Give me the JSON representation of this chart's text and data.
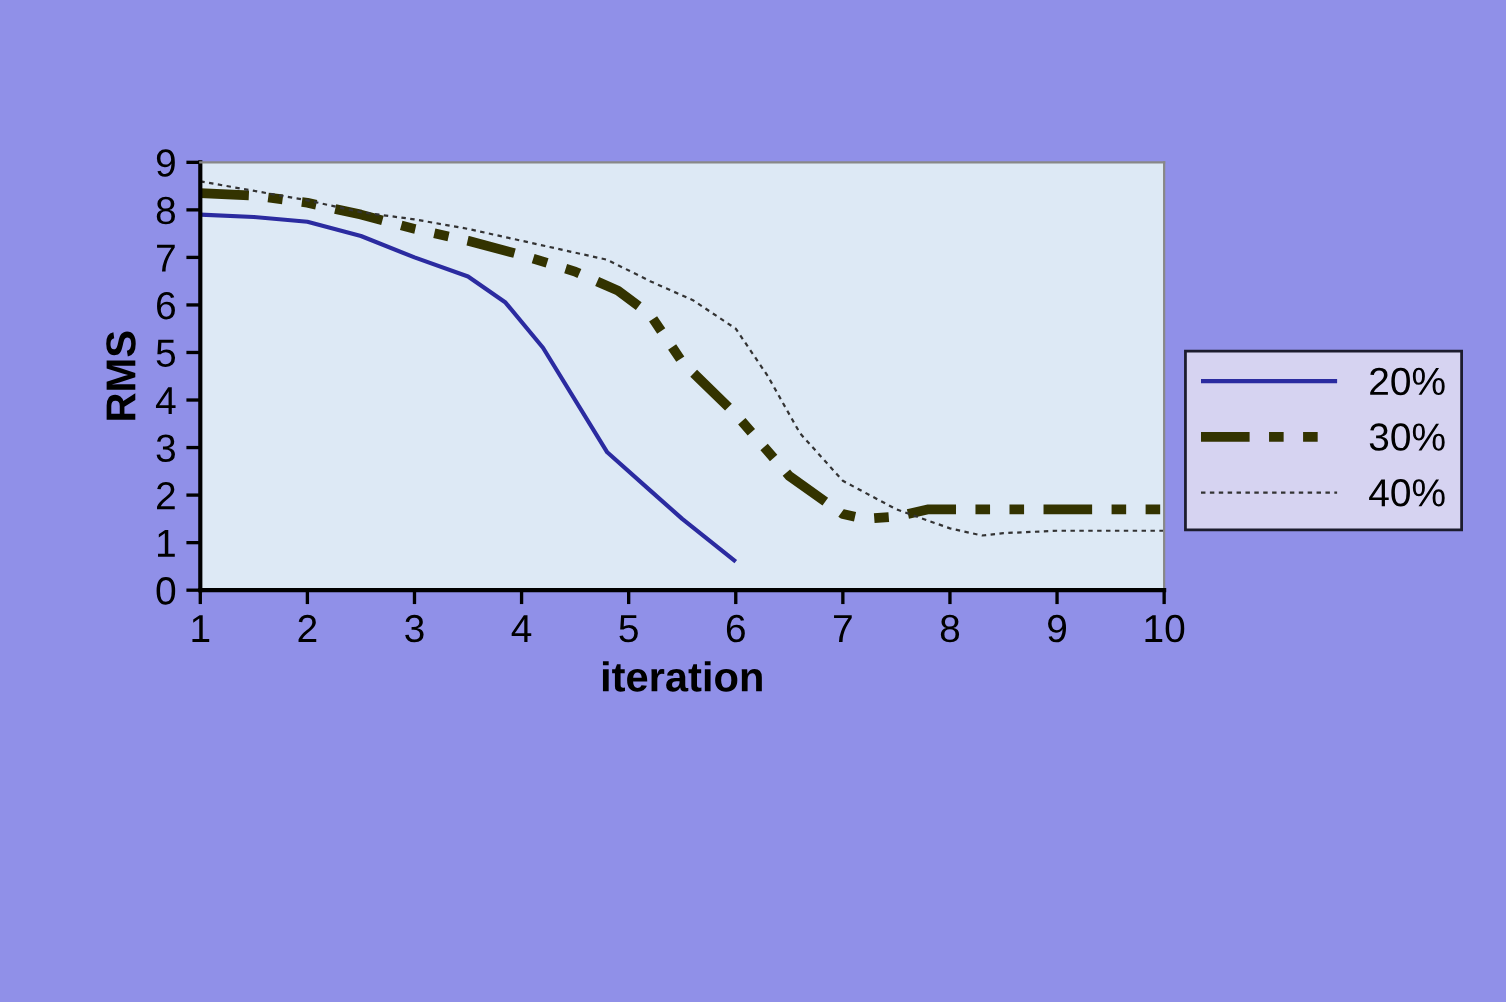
{
  "chart_data": {
    "type": "line",
    "xlabel": "iteration",
    "ylabel": "RMS",
    "xlim": [
      1,
      10
    ],
    "xticks": [
      1,
      2,
      3,
      4,
      5,
      6,
      7,
      8,
      9,
      10
    ],
    "ylim": [
      0,
      9
    ],
    "yticks": [
      0,
      1,
      2,
      3,
      4,
      5,
      6,
      7,
      8,
      9
    ],
    "grid": false,
    "legend": "right",
    "marker": "none",
    "series": [
      {
        "name": "20%",
        "color": "#2b2ba0",
        "line_style": "solid",
        "x": [
          1,
          1.5,
          2,
          2.5,
          3,
          3.5,
          3.85,
          4.2,
          4.8,
          5.2,
          5.5,
          6
        ],
        "values": [
          7.9,
          7.85,
          7.75,
          7.45,
          7.0,
          6.6,
          6.05,
          5.1,
          2.9,
          2.1,
          1.5,
          0.6
        ]
      },
      {
        "name": "30%",
        "color": "#333300",
        "line_style": "dashdot",
        "x": [
          1,
          1.5,
          2,
          2.5,
          3,
          3.5,
          4,
          4.5,
          4.9,
          5.2,
          5.5,
          6,
          6.5,
          7,
          7.2,
          7.5,
          7.8,
          8,
          10
        ],
        "values": [
          8.35,
          8.3,
          8.15,
          7.9,
          7.6,
          7.35,
          7.05,
          6.7,
          6.3,
          5.8,
          4.8,
          3.7,
          2.4,
          1.6,
          1.5,
          1.55,
          1.7,
          1.7,
          1.7
        ]
      },
      {
        "name": "40%",
        "color": "#333333",
        "line_style": "dotted",
        "x": [
          1,
          2,
          2.5,
          3,
          3.5,
          4,
          4.5,
          4.8,
          5.2,
          5.6,
          6,
          6.3,
          6.6,
          7,
          7.5,
          8,
          8.3,
          8.5,
          9,
          10
        ],
        "values": [
          8.6,
          8.2,
          7.95,
          7.8,
          7.6,
          7.35,
          7.1,
          6.95,
          6.5,
          6.1,
          5.5,
          4.5,
          3.3,
          2.3,
          1.7,
          1.3,
          1.15,
          1.2,
          1.25,
          1.25
        ]
      }
    ]
  }
}
